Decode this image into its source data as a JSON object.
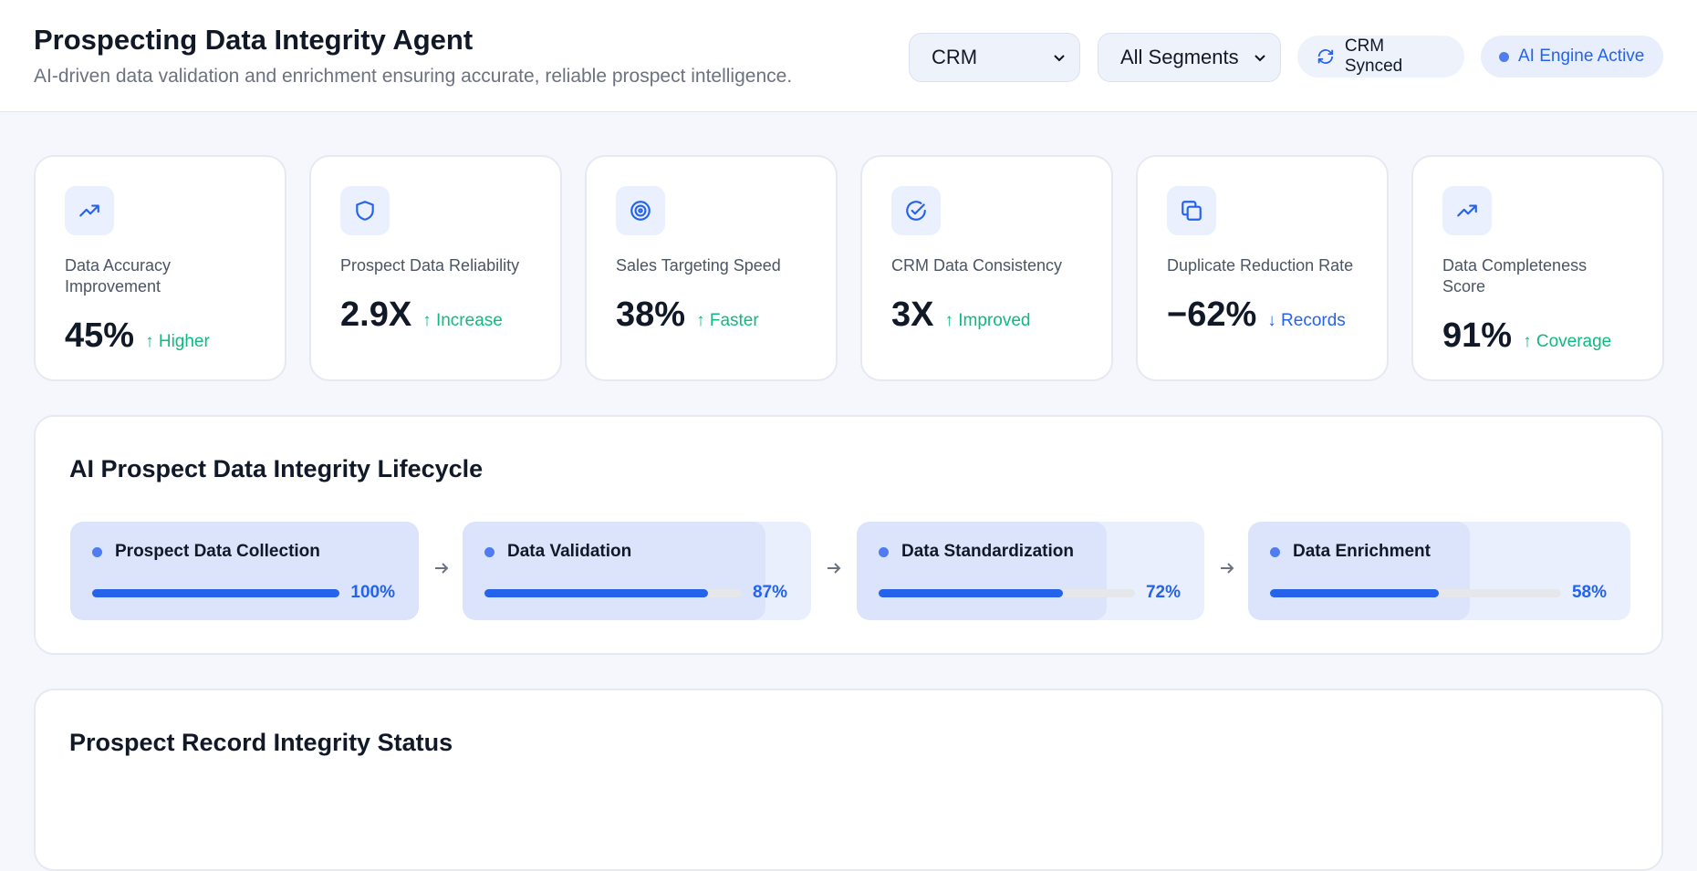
{
  "header": {
    "title": "Prospecting Data Integrity Agent",
    "subtitle": "AI-driven data validation and enrichment ensuring accurate, reliable prospect intelligence.",
    "filters": [
      "CRM",
      "All Segments"
    ],
    "badges": [
      "CRM Synced",
      "AI Engine Active"
    ]
  },
  "kpis": [
    {
      "label": "Data Accuracy Improvement",
      "value": "45%",
      "trend": "↑ Higher"
    },
    {
      "label": "Prospect Data Reliability",
      "value": "2.9X",
      "trend": "↑ Increase"
    },
    {
      "label": "Sales Targeting Speed",
      "value": "38%",
      "trend": "↑ Faster"
    },
    {
      "label": "CRM Data Consistency",
      "value": "3X",
      "trend": "↑ Improved"
    },
    {
      "label": "Duplicate Reduction Rate",
      "value": "−62%",
      "trend": "↓ Records"
    },
    {
      "label": "Data Completeness Score",
      "value": "91%",
      "trend": "↑ Coverage"
    }
  ],
  "lifecycle": {
    "title": "AI Prospect Data Integrity Lifecycle",
    "stages": [
      {
        "name": "Prospect Data Collection",
        "value": 100,
        "value_label": "100%"
      },
      {
        "name": "Data Validation",
        "value": 87,
        "value_label": "87%"
      },
      {
        "name": "Data Standardization",
        "value": 72,
        "value_label": "72%"
      },
      {
        "name": "Data Enrichment",
        "value": 58,
        "value_label": "58%"
      }
    ]
  },
  "records": {
    "title": "Prospect Record Integrity Status"
  }
}
